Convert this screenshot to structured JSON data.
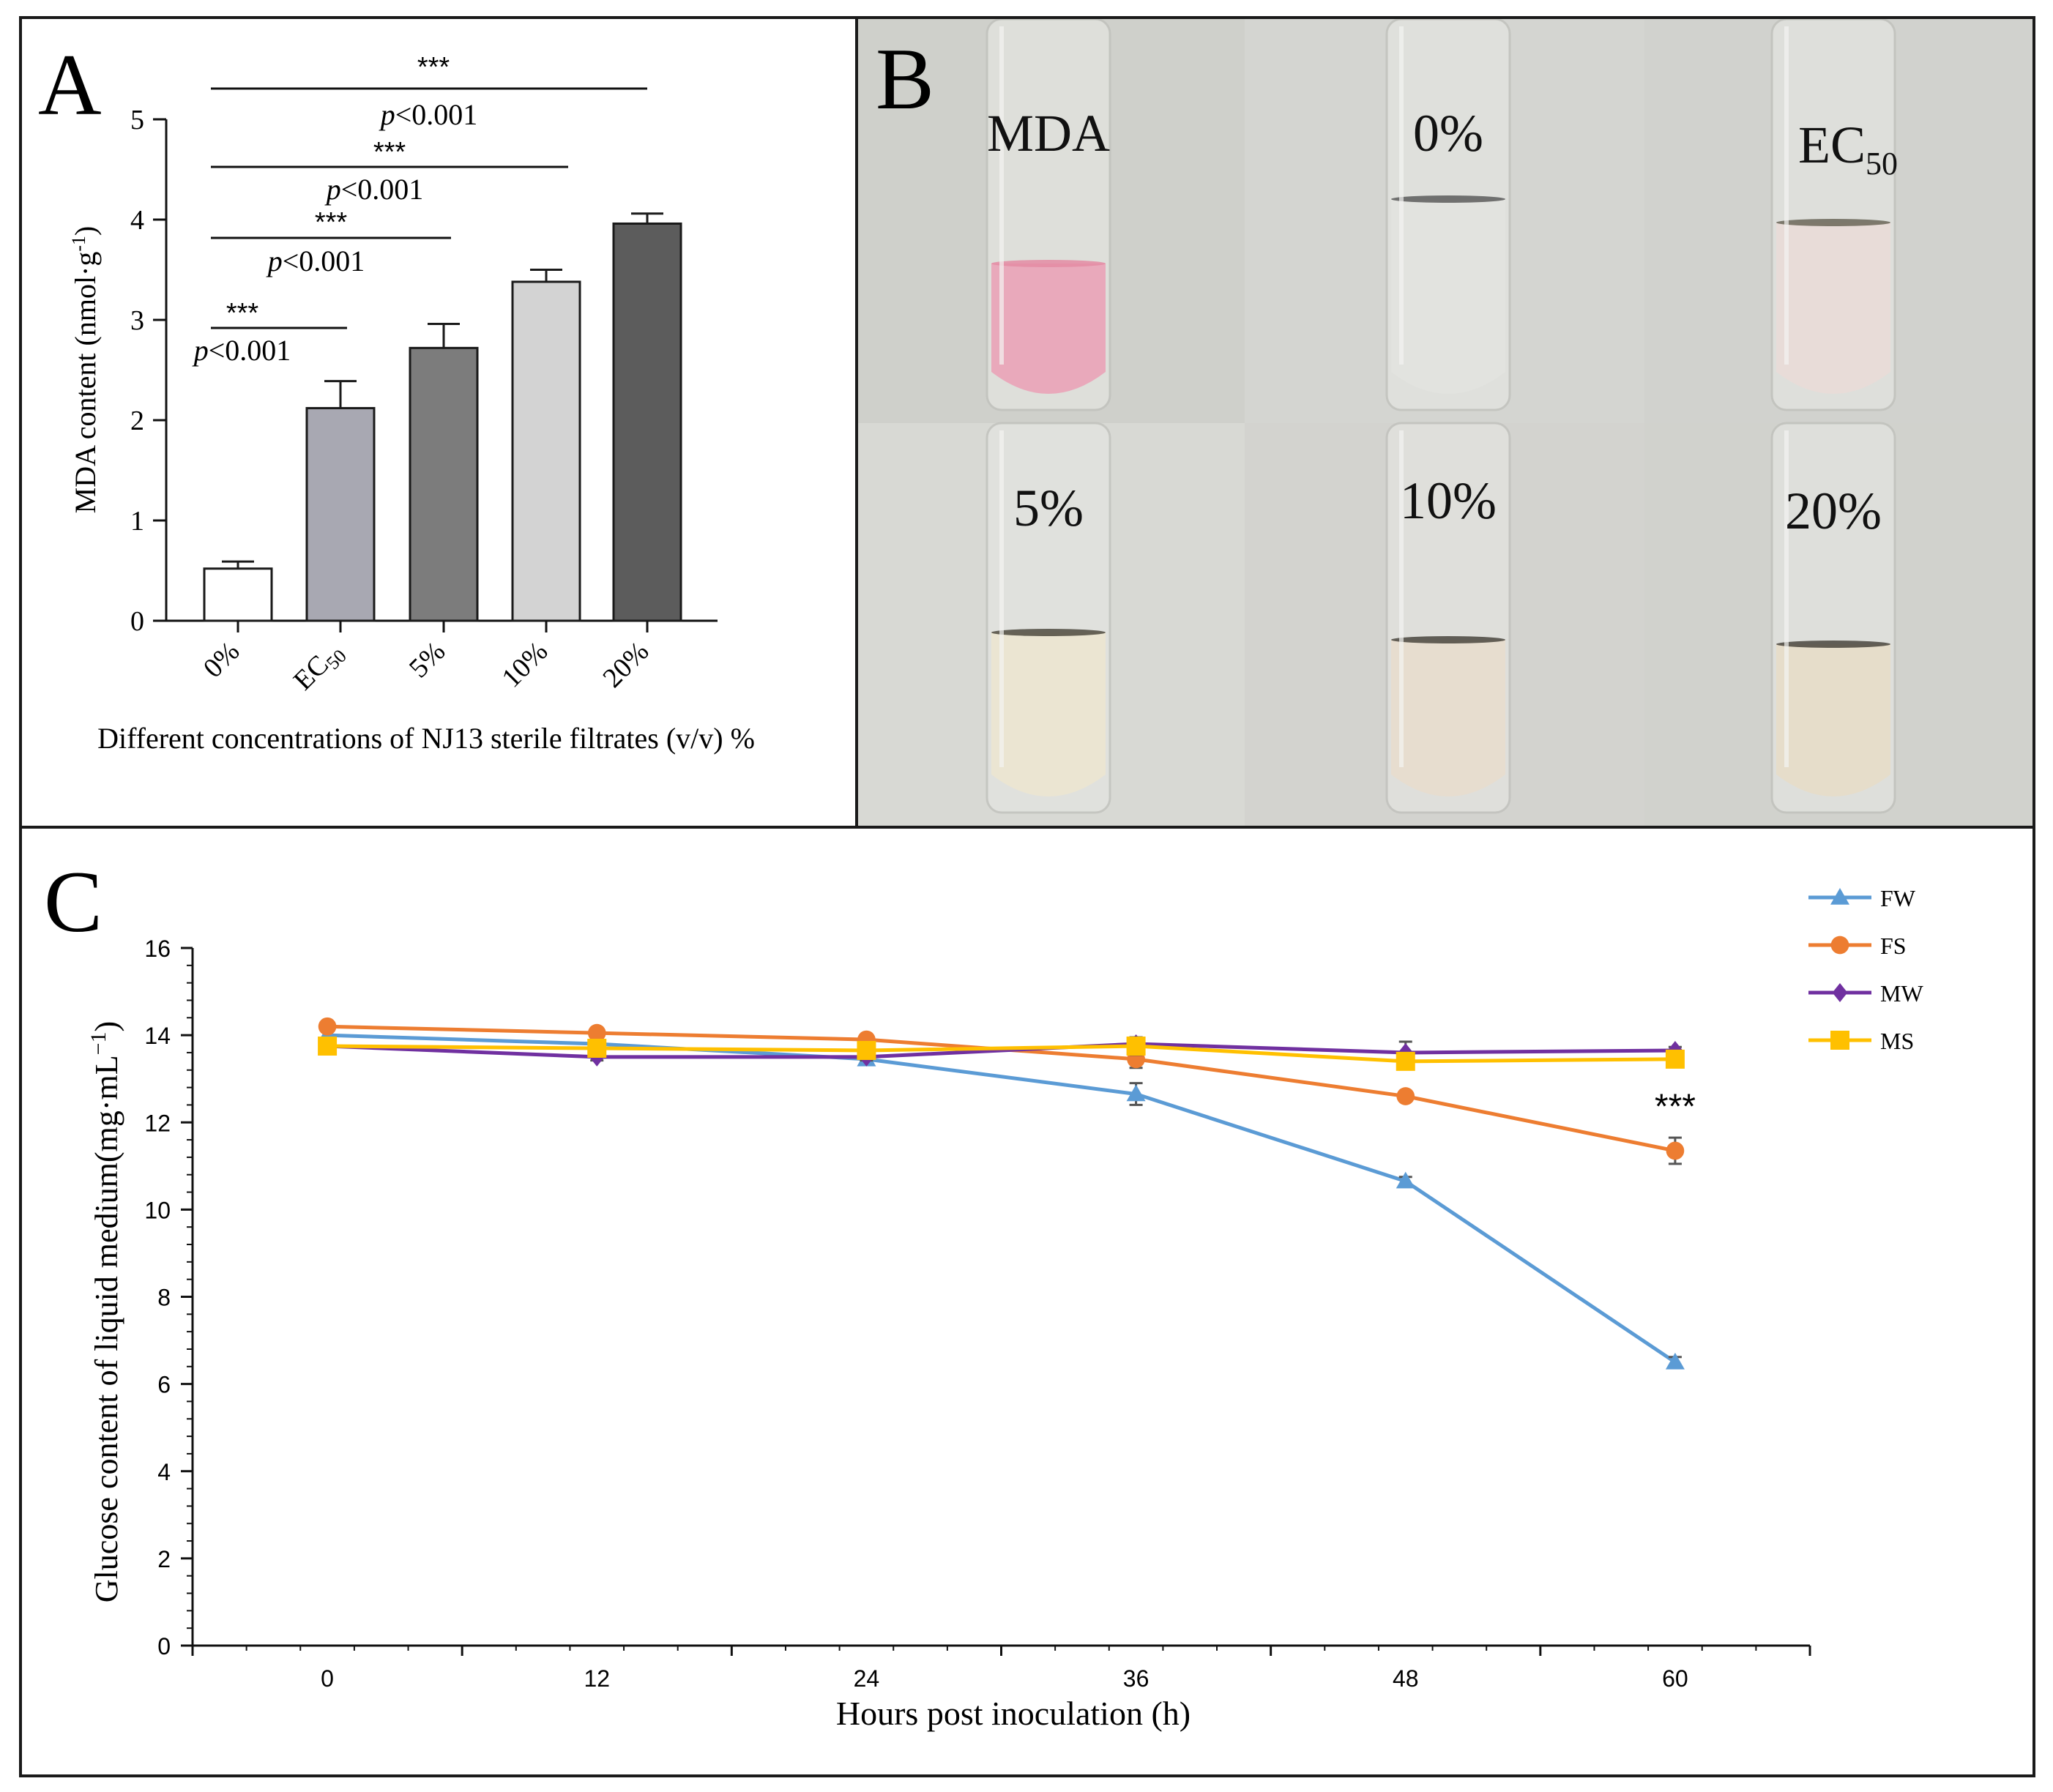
{
  "panels": {
    "a": {
      "letter": "A"
    },
    "b": {
      "letter": "B"
    },
    "c": {
      "letter": "C"
    }
  },
  "chart_data": [
    {
      "id": "A",
      "type": "bar",
      "title": "",
      "xlabel": "Different concentrations of NJ13 sterile filtrates (v/v) %",
      "ylabel": "MDA content (nmol·g⁻¹)",
      "ylabel_base": "MDA content (nmol·g",
      "ylabel_sup": "-1",
      "ylabel_close": ")",
      "ylim": [
        0,
        5
      ],
      "yticks": [
        0,
        1,
        2,
        3,
        4,
        5
      ],
      "categories": [
        "0%",
        "EC50",
        "5%",
        "10%",
        "20%"
      ],
      "category_labels": [
        {
          "main": "0%",
          "sub": ""
        },
        {
          "main": "EC",
          "sub": "50"
        },
        {
          "main": "5%",
          "sub": ""
        },
        {
          "main": "10%",
          "sub": ""
        },
        {
          "main": "20%",
          "sub": ""
        }
      ],
      "values": [
        0.52,
        2.12,
        2.72,
        3.38,
        3.96
      ],
      "errors": [
        0.07,
        0.27,
        0.24,
        0.12,
        0.1
      ],
      "bar_colors": [
        "#ffffff",
        "#a8a8b2",
        "#7c7c7c",
        "#d3d3d3",
        "#5c5c5c"
      ],
      "significance": [
        {
          "from": 0,
          "to": 4,
          "stars": "***",
          "p_prefix": "p",
          "p_text": "<0.001"
        },
        {
          "from": 0,
          "to": 3,
          "stars": "***",
          "p_prefix": "p",
          "p_text": "<0.001"
        },
        {
          "from": 0,
          "to": 2,
          "stars": "***",
          "p_prefix": "p",
          "p_text": "<0.001"
        },
        {
          "from": 0,
          "to": 1,
          "stars": "***",
          "p_prefix": "p",
          "p_text": "<0.001"
        }
      ]
    },
    {
      "id": "C",
      "type": "line",
      "title": "",
      "xlabel": "Hours post inoculation (h)",
      "ylabel": "Glucose content of liquid medium(mg·mL⁻¹)",
      "ylabel_base": "Glucose content of liquid medium(mg·mL",
      "ylabel_sup": "−1",
      "ylabel_close": ")",
      "x": [
        0,
        12,
        24,
        36,
        48,
        60
      ],
      "xlim": [
        -6,
        66
      ],
      "ylim": [
        0,
        16
      ],
      "yticks": [
        0,
        2,
        4,
        6,
        8,
        10,
        12,
        14,
        16
      ],
      "legend_position": "top-right",
      "annotation": {
        "text": "***",
        "x": 60,
        "y": 12.1
      },
      "series": [
        {
          "name": "FW",
          "color": "#5b9bd5",
          "marker": "triangle",
          "values": [
            14.0,
            13.8,
            13.45,
            12.65,
            10.65,
            6.5
          ],
          "errors": [
            0.1,
            0.1,
            0.1,
            0.25,
            0.1,
            0.12
          ]
        },
        {
          "name": "FS",
          "color": "#ed7d31",
          "marker": "circle",
          "values": [
            14.2,
            14.05,
            13.9,
            13.45,
            12.6,
            11.35
          ],
          "errors": [
            0.08,
            0.08,
            0.08,
            0.2,
            0.1,
            0.3
          ]
        },
        {
          "name": "MW",
          "color": "#7030a0",
          "marker": "diamond",
          "values": [
            13.75,
            13.5,
            13.5,
            13.8,
            13.6,
            13.65
          ],
          "errors": [
            0.08,
            0.08,
            0.08,
            0.15,
            0.25,
            0.08
          ]
        },
        {
          "name": "MS",
          "color": "#ffc000",
          "marker": "square",
          "values": [
            13.75,
            13.7,
            13.65,
            13.75,
            13.4,
            13.45
          ],
          "errors": [
            0.1,
            0.1,
            0.12,
            0.2,
            0.15,
            0.1
          ]
        }
      ]
    }
  ],
  "photo_grid": {
    "tiles": [
      {
        "label_main": "MDA",
        "label_sub": "",
        "liquid": "#e9a9bb",
        "bg": "#cfd0cb",
        "meniscus": "#e48ca3"
      },
      {
        "label_main": "0%",
        "label_sub": "",
        "liquid": "#e2e3df",
        "bg": "#d4d5d1",
        "meniscus": "#5c5c5c"
      },
      {
        "label_main": "EC",
        "label_sub": "50",
        "liquid": "#e8dcd8",
        "bg": "#d1d2ce",
        "meniscus": "#6a6658"
      },
      {
        "label_main": "5%",
        "label_sub": "",
        "liquid": "#ebe5d2",
        "bg": "#d8d9d4",
        "meniscus": "#4e4a40"
      },
      {
        "label_main": "10%",
        "label_sub": "",
        "liquid": "#e7ddcf",
        "bg": "#d3d3cf",
        "meniscus": "#4a463e"
      },
      {
        "label_main": "20%",
        "label_sub": "",
        "liquid": "#e6ddca",
        "bg": "#d1d2cd",
        "meniscus": "#4a463e"
      }
    ]
  }
}
